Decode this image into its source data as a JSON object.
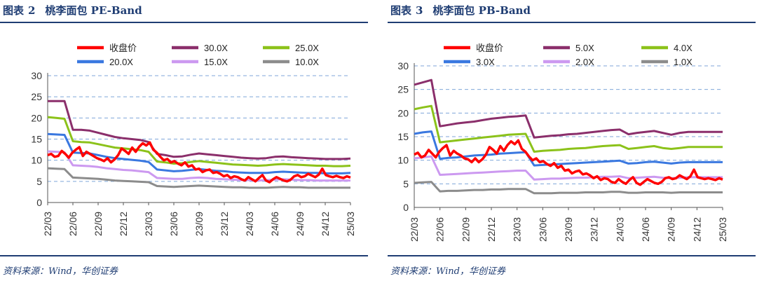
{
  "figures": [
    {
      "title_prefix": "图表",
      "title_number": "2",
      "title_text": "桃李面包 PE-Band",
      "source": "资料来源：Wind，华创证券"
    },
    {
      "title_prefix": "图表",
      "title_number": "3",
      "title_text": "桃李面包 PB-Band",
      "source": "资料来源：Wind，华创证券"
    }
  ],
  "chart_data": [
    {
      "type": "line",
      "title": "桃李面包 PE-Band",
      "xlabel": "",
      "ylabel": "",
      "x_ticks": [
        "22/03",
        "22/06",
        "22/09",
        "22/12",
        "23/03",
        "23/06",
        "23/09",
        "23/12",
        "24/03",
        "24/06",
        "24/09",
        "24/12",
        "25/03"
      ],
      "ylim": [
        0,
        30
      ],
      "y_ticks": [
        "0",
        "5",
        "10",
        "15",
        "20",
        "25",
        "30"
      ],
      "grid": "horizontal dashed",
      "legend_position": "top",
      "series": [
        {
          "name": "收盘价",
          "color": "#ff0000",
          "width": 3.5,
          "values": [
            11.2,
            11.5,
            10.8,
            11.0,
            12.2,
            11.5,
            10.6,
            11.8,
            12.5,
            13.1,
            11.0,
            12.0,
            11.5,
            11.0,
            10.5,
            10.2,
            9.8,
            10.5,
            9.5,
            10.2,
            11.2,
            12.8,
            12.2,
            11.5,
            13.0,
            12.0,
            13.2,
            14.0,
            13.5,
            14.2,
            12.5,
            11.8,
            10.8,
            10.0,
            10.3,
            9.5,
            9.8,
            9.2,
            8.8,
            9.5,
            8.5,
            8.8,
            7.8,
            8.0,
            7.2,
            7.6,
            7.8,
            7.0,
            7.2,
            6.8,
            6.2,
            6.5,
            5.8,
            6.2,
            6.0,
            5.5,
            5.2,
            6.0,
            5.5,
            5.0,
            5.8,
            6.5,
            5.2,
            4.8,
            5.5,
            6.0,
            5.6,
            5.2,
            5.0,
            5.4,
            6.2,
            6.5,
            6.0,
            6.2,
            6.8,
            6.4,
            6.0,
            6.6,
            8.0,
            6.5,
            6.2,
            6.0,
            6.3,
            6.0,
            5.8,
            6.2,
            5.9
          ]
        },
        {
          "name": "30.0X",
          "color": "#8b2f6b",
          "width": 3,
          "values": [
            24.0,
            24.0,
            24.0,
            17.2,
            17.2,
            17.0,
            16.5,
            16.0,
            15.5,
            15.2,
            15.0,
            14.8,
            14.3,
            11.5,
            11.2,
            10.8,
            10.9,
            11.3,
            11.6,
            11.4,
            11.2,
            11.0,
            10.8,
            10.6,
            10.5,
            10.4,
            10.5,
            10.8,
            10.9,
            10.7,
            10.6,
            10.5,
            10.4,
            10.3,
            10.3,
            10.3,
            10.4
          ]
        },
        {
          "name": "25.0X",
          "color": "#8cc21a",
          "width": 3,
          "values": [
            20.2,
            20.0,
            19.8,
            14.5,
            14.3,
            14.2,
            13.8,
            13.4,
            13.0,
            12.8,
            12.6,
            12.4,
            12.0,
            9.7,
            9.5,
            9.2,
            9.3,
            9.6,
            9.8,
            9.6,
            9.4,
            9.2,
            9.0,
            8.9,
            8.8,
            8.7,
            8.8,
            9.0,
            9.1,
            9.0,
            8.9,
            8.8,
            8.7,
            8.7,
            8.6,
            8.6,
            8.7
          ]
        },
        {
          "name": "20.0X",
          "color": "#3a78e0",
          "width": 3,
          "values": [
            16.2,
            16.1,
            16.0,
            11.8,
            11.7,
            11.6,
            11.2,
            10.8,
            10.5,
            10.3,
            10.1,
            9.9,
            9.6,
            7.8,
            7.6,
            7.4,
            7.5,
            7.7,
            7.9,
            7.7,
            7.5,
            7.4,
            7.2,
            7.1,
            7.0,
            7.0,
            7.0,
            7.2,
            7.3,
            7.2,
            7.1,
            7.0,
            7.0,
            6.9,
            6.9,
            6.9,
            7.0
          ]
        },
        {
          "name": "15.0X",
          "color": "#cc99f0",
          "width": 3,
          "values": [
            12.1,
            12.0,
            11.9,
            8.8,
            8.7,
            8.6,
            8.4,
            8.1,
            7.9,
            7.7,
            7.6,
            7.4,
            7.2,
            5.8,
            5.7,
            5.6,
            5.6,
            5.8,
            5.9,
            5.8,
            5.6,
            5.5,
            5.4,
            5.3,
            5.3,
            5.2,
            5.3,
            5.4,
            5.5,
            5.4,
            5.3,
            5.3,
            5.2,
            5.2,
            5.2,
            5.2,
            5.2
          ]
        },
        {
          "name": "10.0X",
          "color": "#8c8c8c",
          "width": 3,
          "values": [
            8.1,
            8.0,
            7.9,
            5.9,
            5.8,
            5.7,
            5.6,
            5.4,
            5.2,
            5.1,
            5.0,
            4.9,
            4.8,
            3.9,
            3.8,
            3.7,
            3.8,
            3.9,
            4.0,
            3.9,
            3.8,
            3.7,
            3.6,
            3.6,
            3.5,
            3.5,
            3.5,
            3.6,
            3.7,
            3.6,
            3.6,
            3.5,
            3.5,
            3.5,
            3.5,
            3.5,
            3.5
          ]
        }
      ]
    },
    {
      "type": "line",
      "title": "桃李面包 PB-Band",
      "xlabel": "",
      "ylabel": "",
      "x_ticks": [
        "22/03",
        "22/06",
        "22/09",
        "22/12",
        "23/03",
        "23/06",
        "23/09",
        "23/12",
        "24/03",
        "24/06",
        "24/09",
        "24/12",
        "25/03"
      ],
      "ylim": [
        0,
        30
      ],
      "y_ticks": [
        "0",
        "5",
        "10",
        "15",
        "20",
        "25",
        "30"
      ],
      "grid": "horizontal dashed",
      "legend_position": "top",
      "series": [
        {
          "name": "收盘价",
          "color": "#ff0000",
          "width": 3.5,
          "values": [
            11.2,
            11.6,
            10.6,
            11.0,
            12.2,
            11.4,
            10.6,
            11.8,
            12.6,
            13.2,
            11.0,
            12.0,
            11.4,
            11.0,
            10.4,
            10.2,
            9.6,
            10.4,
            9.6,
            10.2,
            11.2,
            12.8,
            12.2,
            11.4,
            13.0,
            12.0,
            13.2,
            14.0,
            13.4,
            14.2,
            12.4,
            11.8,
            10.8,
            10.0,
            10.4,
            9.6,
            9.8,
            9.2,
            8.8,
            9.4,
            8.4,
            8.8,
            7.8,
            8.0,
            7.2,
            7.6,
            7.8,
            7.0,
            7.2,
            6.8,
            6.2,
            6.6,
            5.8,
            6.2,
            6.0,
            5.4,
            5.2,
            6.0,
            5.4,
            5.0,
            5.8,
            6.4,
            5.2,
            4.8,
            5.4,
            6.0,
            5.6,
            5.2,
            5.0,
            5.4,
            6.2,
            6.4,
            6.0,
            6.2,
            6.8,
            6.4,
            6.0,
            6.6,
            8.0,
            6.4,
            6.2,
            6.0,
            6.2,
            6.0,
            5.8,
            6.2,
            5.9
          ]
        },
        {
          "name": "5.0X",
          "color": "#8b2f6b",
          "width": 3,
          "values": [
            26.0,
            26.5,
            27.0,
            17.2,
            17.5,
            17.8,
            18.0,
            18.2,
            18.5,
            18.8,
            19.0,
            19.2,
            19.3,
            19.5,
            14.8,
            15.0,
            15.2,
            15.3,
            15.5,
            15.6,
            15.8,
            16.0,
            16.2,
            16.4,
            16.5,
            15.5,
            15.8,
            16.0,
            16.2,
            15.8,
            15.4,
            15.8,
            16.0,
            16.0,
            16.0,
            16.0,
            16.0
          ]
        },
        {
          "name": "4.0X",
          "color": "#8cc21a",
          "width": 3,
          "values": [
            20.8,
            21.2,
            21.5,
            13.8,
            14.0,
            14.2,
            14.4,
            14.6,
            14.8,
            15.0,
            15.2,
            15.4,
            15.5,
            15.6,
            11.8,
            12.0,
            12.1,
            12.2,
            12.4,
            12.5,
            12.6,
            12.8,
            13.0,
            13.1,
            13.2,
            12.4,
            12.6,
            12.8,
            13.0,
            12.6,
            12.4,
            12.6,
            12.8,
            12.8,
            12.8,
            12.8,
            12.8
          ]
        },
        {
          "name": "3.0X",
          "color": "#3a78e0",
          "width": 3,
          "values": [
            15.6,
            15.9,
            16.1,
            10.3,
            10.5,
            10.6,
            10.8,
            11.0,
            11.1,
            11.2,
            11.4,
            11.5,
            11.6,
            11.7,
            8.9,
            9.0,
            9.1,
            9.2,
            9.3,
            9.4,
            9.5,
            9.6,
            9.7,
            9.8,
            9.9,
            9.3,
            9.4,
            9.6,
            9.7,
            9.5,
            9.3,
            9.5,
            9.6,
            9.6,
            9.6,
            9.6,
            9.6
          ]
        },
        {
          "name": "2.0X",
          "color": "#cc99f0",
          "width": 3,
          "values": [
            10.4,
            10.6,
            10.8,
            6.9,
            7.0,
            7.1,
            7.2,
            7.3,
            7.4,
            7.5,
            7.6,
            7.7,
            7.8,
            7.8,
            5.9,
            6.0,
            6.1,
            6.1,
            6.2,
            6.3,
            6.3,
            6.4,
            6.5,
            6.5,
            6.6,
            6.2,
            6.3,
            6.4,
            6.5,
            6.3,
            6.2,
            6.3,
            6.4,
            6.4,
            6.4,
            6.4,
            6.4
          ]
        },
        {
          "name": "1.0X",
          "color": "#8c8c8c",
          "width": 3,
          "values": [
            5.2,
            5.3,
            5.4,
            3.4,
            3.5,
            3.5,
            3.6,
            3.7,
            3.7,
            3.8,
            3.8,
            3.9,
            3.9,
            3.9,
            3.0,
            3.0,
            3.0,
            3.1,
            3.1,
            3.1,
            3.2,
            3.2,
            3.2,
            3.3,
            3.3,
            3.1,
            3.1,
            3.2,
            3.2,
            3.2,
            3.1,
            3.2,
            3.2,
            3.2,
            3.2,
            3.2,
            3.2
          ]
        }
      ]
    }
  ]
}
